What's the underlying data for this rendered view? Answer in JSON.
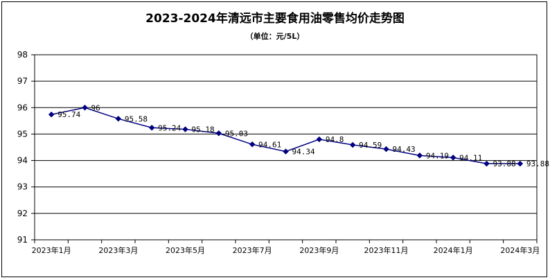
{
  "chart_data": {
    "type": "line",
    "title": "2023-2024年清远市主要食用油零售均价走势图",
    "subtitle": "（单位：元/5L）",
    "ylim": [
      91,
      98
    ],
    "yticks": [
      91,
      92,
      93,
      94,
      95,
      96,
      97,
      98
    ],
    "grid": true,
    "x": [
      "2023年1月",
      "2023年2月",
      "2023年3月",
      "2023年4月",
      "2023年5月",
      "2023年6月",
      "2023年7月",
      "2023年8月",
      "2023年9月",
      "2023年10月",
      "2023年11月",
      "2023年12月",
      "2024年1月",
      "2024年2月",
      "2024年3月"
    ],
    "xtick_labels": [
      "2023年1月",
      "2023年3月",
      "2023年5月",
      "2023年7月",
      "2023年9月",
      "2023年11月",
      "2024年1月",
      "2024年3月"
    ],
    "series": [
      {
        "values": [
          95.74,
          96,
          95.58,
          95.24,
          95.18,
          95.03,
          94.61,
          94.34,
          94.8,
          94.59,
          94.43,
          94.19,
          94.11,
          93.88,
          93.88
        ],
        "labels": [
          "95.74",
          "96",
          "95.58",
          "95.24",
          "95.18",
          "95.03",
          "94.61",
          "94.34",
          "94.8",
          "94.59",
          "94.43",
          "94.19",
          "94.11",
          "93.88",
          "93.88"
        ],
        "color": "#000080"
      }
    ]
  }
}
